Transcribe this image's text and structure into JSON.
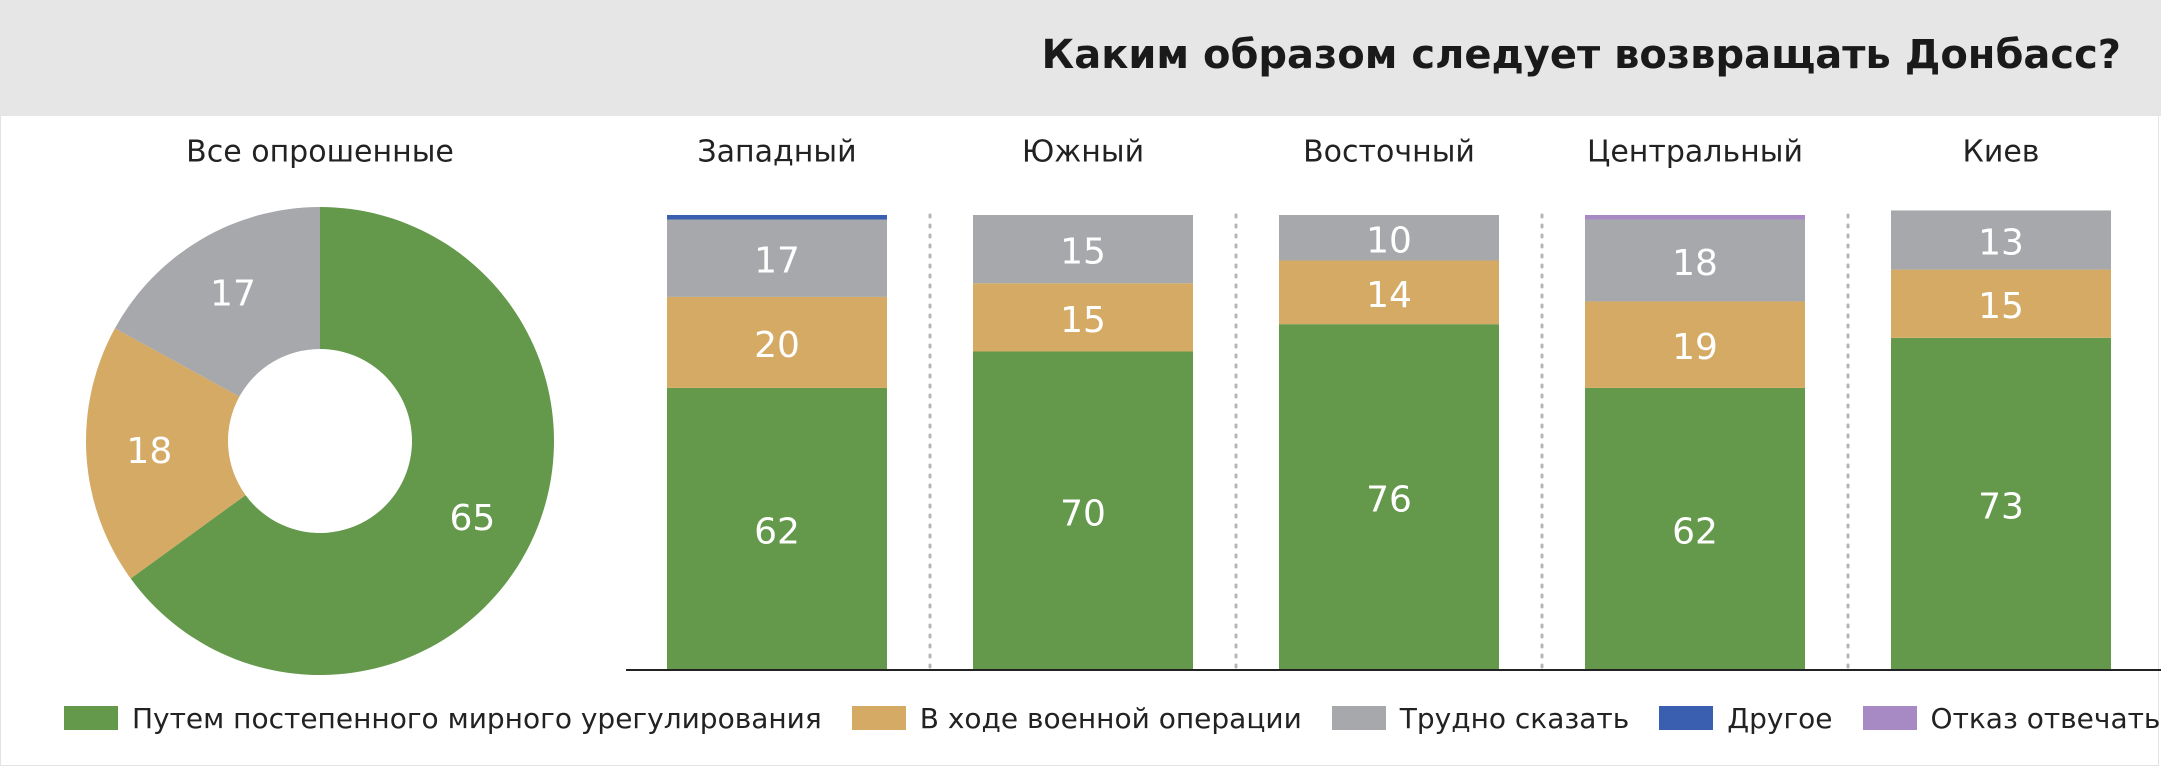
{
  "chart_data": {
    "type": "bar",
    "title": "Каким образом следует возвращать Донбасс?",
    "series": [
      {
        "name": "Путем постепенного мирного урегулирования",
        "color": "#64994b"
      },
      {
        "name": "В ходе военной операции",
        "color": "#d4aa64"
      },
      {
        "name": "Трудно сказать",
        "color": "#a7a8ab"
      },
      {
        "name": "Другое",
        "color": "#3a5fb0"
      },
      {
        "name": "Отказ отвечать",
        "color": "#a78ac4"
      }
    ],
    "pie": {
      "type": "pie",
      "title": "Все опрошенные",
      "values": [
        65,
        18,
        17
      ]
    },
    "bars": {
      "type": "bar",
      "stacked": true,
      "ylim": [
        0,
        100
      ],
      "categories": [
        "Западный",
        "Южный",
        "Восточный",
        "Центральный",
        "Киев"
      ],
      "values": [
        [
          62,
          20,
          17,
          1,
          0
        ],
        [
          70,
          15,
          15,
          0,
          0
        ],
        [
          76,
          14,
          10,
          0,
          0
        ],
        [
          62,
          19,
          18,
          0,
          1
        ],
        [
          73,
          15,
          13,
          0,
          0
        ]
      ],
      "labels": [
        [
          "62",
          "20",
          "17",
          "",
          ""
        ],
        [
          "70",
          "15",
          "15",
          "",
          ""
        ],
        [
          "76",
          "14",
          "10",
          "",
          ""
        ],
        [
          "62",
          "19",
          "18",
          "",
          ""
        ],
        [
          "73",
          "15",
          "13",
          "",
          ""
        ]
      ]
    }
  }
}
